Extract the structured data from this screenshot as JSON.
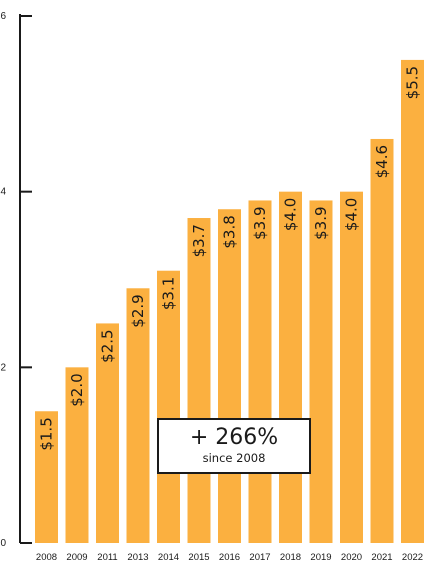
{
  "chart_data": {
    "type": "bar",
    "categories": [
      "2008",
      "2009",
      "2011",
      "2013",
      "2014",
      "2015",
      "2016",
      "2017",
      "2018",
      "2019",
      "2020",
      "2021",
      "2022"
    ],
    "values": [
      1.5,
      2.0,
      2.5,
      2.9,
      3.1,
      3.7,
      3.8,
      3.9,
      4.0,
      3.9,
      4.0,
      4.6,
      5.5
    ],
    "data_labels": [
      "$1.5",
      "$2.0",
      "$2.5",
      "$2.9",
      "$3.1",
      "$3.7",
      "$3.8",
      "$3.9",
      "$4.0",
      "$3.9",
      "$4.0",
      "$4.6",
      "$5.5"
    ],
    "ylim": [
      0,
      6
    ],
    "y_ticks": [
      0,
      2,
      4,
      6
    ],
    "y_tick_labels": [
      "0",
      "2",
      "4",
      "6"
    ],
    "title": "",
    "xlabel": "",
    "ylabel": "",
    "grid": false,
    "bar_color": "#FBB040",
    "axis_color": "#1a1a1a"
  },
  "callout": {
    "main": "+ 266%",
    "sub": "since 2008"
  }
}
